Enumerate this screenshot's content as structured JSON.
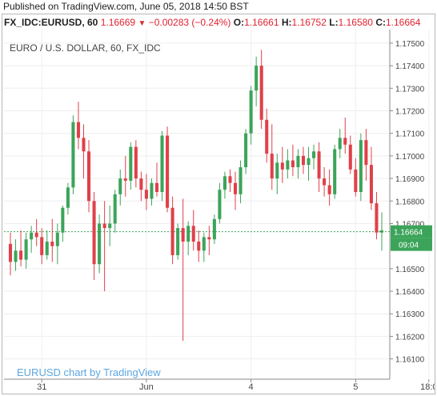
{
  "header": {
    "published": "Published on TradingView.com, June 05, 2018 14:50 BST"
  },
  "ohlc": {
    "symbol": "FX_IDC:EURUSD, 60",
    "last": "1.16669",
    "arrow": "▼",
    "change": "−0.00283 (−0.24%)",
    "open_label": "O:",
    "open": "1.16661",
    "high_label": "H:",
    "high": "1.16752",
    "low_label": "L:",
    "low": "1.16580",
    "close_label": "C:",
    "close": "1.16664"
  },
  "chart_title": "EURO / U.S. DOLLAR, 60, FX_IDC",
  "watermark": "EURUSD chart by TradingView",
  "colors": {
    "up": "#3ca45a",
    "down": "#e0404a",
    "price_tag": "#3ca45a",
    "grid": "#eeeeee",
    "price_line": "#3ca45a",
    "watermark": "#5ba7e0"
  },
  "chart_data": {
    "type": "candlestick",
    "title": "EURO / U.S. DOLLAR, 60, FX_IDC",
    "ylim": [
      1.1601,
      1.1756
    ],
    "y_ticks": [
      "1.17500",
      "1.17400",
      "1.17300",
      "1.17200",
      "1.17100",
      "1.17000",
      "1.16900",
      "1.16800",
      "1.16700",
      "1.16500",
      "1.16400",
      "1.16300",
      "1.16200",
      "1.16100"
    ],
    "x_ticks": [
      {
        "label": "31",
        "i": 6
      },
      {
        "label": "Jun",
        "i": 26
      },
      {
        "label": "4",
        "i": 46
      },
      {
        "label": "5",
        "i": 66
      },
      {
        "label": "18:0",
        "i": 80
      }
    ],
    "last_price": "1.16664",
    "countdown": "09:04",
    "candles": [
      [
        1.1661,
        1.1666,
        1.1647,
        1.1653
      ],
      [
        1.1653,
        1.1663,
        1.1649,
        1.1658
      ],
      [
        1.1658,
        1.1667,
        1.1651,
        1.1654
      ],
      [
        1.1654,
        1.1666,
        1.165,
        1.1663
      ],
      [
        1.1663,
        1.1669,
        1.1657,
        1.1666
      ],
      [
        1.1666,
        1.1672,
        1.166,
        1.1664
      ],
      [
        1.1664,
        1.1668,
        1.1652,
        1.1656
      ],
      [
        1.1656,
        1.1667,
        1.1654,
        1.1662
      ],
      [
        1.1662,
        1.1672,
        1.1653,
        1.166
      ],
      [
        1.166,
        1.167,
        1.1652,
        1.1666
      ],
      [
        1.1666,
        1.1678,
        1.1662,
        1.1677
      ],
      [
        1.1677,
        1.1688,
        1.1674,
        1.1686
      ],
      [
        1.1686,
        1.1718,
        1.1683,
        1.1715
      ],
      [
        1.1715,
        1.1724,
        1.1703,
        1.1708
      ],
      [
        1.1708,
        1.1714,
        1.169,
        1.1702
      ],
      [
        1.1702,
        1.1707,
        1.1675,
        1.168
      ],
      [
        1.168,
        1.1684,
        1.1645,
        1.1652
      ],
      [
        1.1652,
        1.1674,
        1.1648,
        1.167
      ],
      [
        1.167,
        1.168,
        1.164,
        1.1668
      ],
      [
        1.1668,
        1.1678,
        1.166,
        1.167
      ],
      [
        1.167,
        1.1685,
        1.1666,
        1.1683
      ],
      [
        1.1683,
        1.1694,
        1.1678,
        1.169
      ],
      [
        1.169,
        1.17,
        1.1682,
        1.1689
      ],
      [
        1.1689,
        1.1706,
        1.1685,
        1.1704
      ],
      [
        1.1704,
        1.1707,
        1.1686,
        1.169
      ],
      [
        1.169,
        1.1693,
        1.168,
        1.1685
      ],
      [
        1.1685,
        1.1692,
        1.1676,
        1.1681
      ],
      [
        1.1681,
        1.169,
        1.1678,
        1.1688
      ],
      [
        1.1688,
        1.1697,
        1.1682,
        1.1684
      ],
      [
        1.1684,
        1.1711,
        1.168,
        1.1709
      ],
      [
        1.1709,
        1.1713,
        1.1675,
        1.1677
      ],
      [
        1.1677,
        1.1682,
        1.1652,
        1.1656
      ],
      [
        1.1656,
        1.167,
        1.1654,
        1.1668
      ],
      [
        1.1668,
        1.1681,
        1.1618,
        1.1662
      ],
      [
        1.1662,
        1.1671,
        1.1656,
        1.1669
      ],
      [
        1.1669,
        1.1676,
        1.1658,
        1.1662
      ],
      [
        1.1662,
        1.1667,
        1.1653,
        1.1658
      ],
      [
        1.1658,
        1.1666,
        1.1653,
        1.1664
      ],
      [
        1.1664,
        1.1669,
        1.1656,
        1.1663
      ],
      [
        1.1663,
        1.1674,
        1.1661,
        1.1672
      ],
      [
        1.1672,
        1.1688,
        1.167,
        1.1685
      ],
      [
        1.1685,
        1.1693,
        1.1681,
        1.1691
      ],
      [
        1.1691,
        1.1694,
        1.1684,
        1.1688
      ],
      [
        1.1688,
        1.1693,
        1.1676,
        1.1683
      ],
      [
        1.1683,
        1.1698,
        1.1679,
        1.1695
      ],
      [
        1.1695,
        1.1712,
        1.1692,
        1.171
      ],
      [
        1.171,
        1.1731,
        1.1705,
        1.1729
      ],
      [
        1.1729,
        1.1744,
        1.1722,
        1.174
      ],
      [
        1.174,
        1.1747,
        1.1712,
        1.1716
      ],
      [
        1.1716,
        1.1721,
        1.1697,
        1.1701
      ],
      [
        1.1701,
        1.1714,
        1.1685,
        1.169
      ],
      [
        1.169,
        1.1701,
        1.1683,
        1.1697
      ],
      [
        1.1697,
        1.1704,
        1.1688,
        1.1694
      ],
      [
        1.1694,
        1.1703,
        1.169,
        1.1698
      ],
      [
        1.1698,
        1.1705,
        1.1691,
        1.1695
      ],
      [
        1.1695,
        1.1703,
        1.169,
        1.17
      ],
      [
        1.17,
        1.1704,
        1.1692,
        1.1696
      ],
      [
        1.1696,
        1.1704,
        1.1689,
        1.1699
      ],
      [
        1.1699,
        1.1705,
        1.1694,
        1.1702
      ],
      [
        1.1702,
        1.1706,
        1.1684,
        1.169
      ],
      [
        1.169,
        1.1695,
        1.1682,
        1.1687
      ],
      [
        1.1687,
        1.1694,
        1.1678,
        1.1683
      ],
      [
        1.1683,
        1.1705,
        1.1681,
        1.1703
      ],
      [
        1.1703,
        1.1712,
        1.1699,
        1.1708
      ],
      [
        1.1708,
        1.1717,
        1.1701,
        1.1705
      ],
      [
        1.1705,
        1.1709,
        1.1692,
        1.1694
      ],
      [
        1.1694,
        1.1699,
        1.1682,
        1.1684
      ],
      [
        1.1684,
        1.171,
        1.168,
        1.1707
      ],
      [
        1.1707,
        1.1712,
        1.1689,
        1.1696
      ],
      [
        1.1696,
        1.1704,
        1.1676,
        1.1679
      ],
      [
        1.1679,
        1.1684,
        1.1663,
        1.1666
      ],
      [
        1.1666,
        1.1675,
        1.1658,
        1.1667
      ]
    ]
  }
}
